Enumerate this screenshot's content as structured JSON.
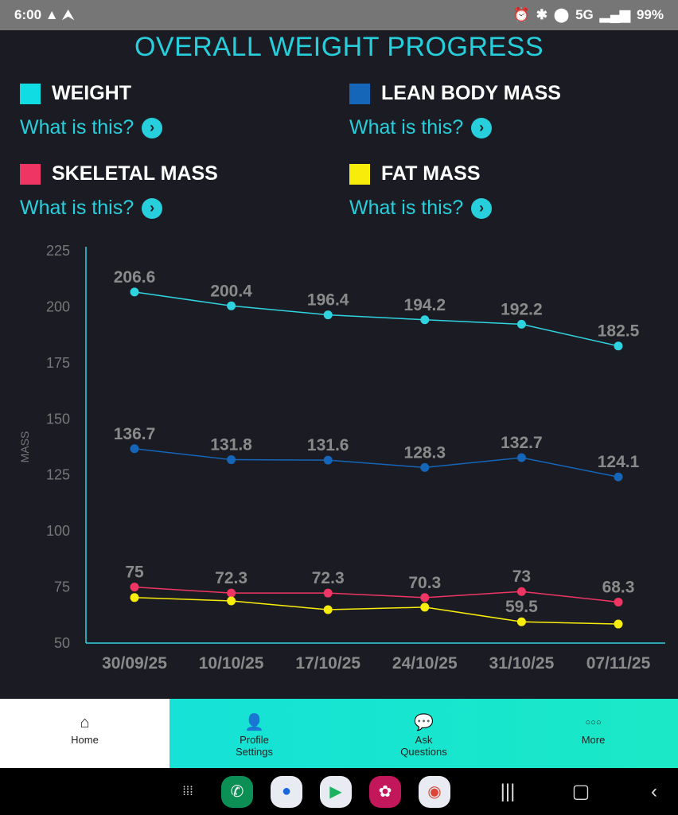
{
  "status": {
    "time": "6:00",
    "network": "5G",
    "battery": "99%"
  },
  "title": "OVERALL WEIGHT PROGRESS",
  "legend": [
    {
      "name": "WEIGHT",
      "color": "#0fdde3",
      "link": "What is this?"
    },
    {
      "name": "LEAN BODY MASS",
      "color": "#1565b8",
      "link": "What is this?"
    },
    {
      "name": "SKELETAL MASS",
      "color": "#ee3563",
      "link": "What is this?"
    },
    {
      "name": "FAT MASS",
      "color": "#f8ec0a",
      "link": "What is this?"
    }
  ],
  "chart_data": {
    "type": "line",
    "ylabel": "MASS",
    "ylim": [
      50,
      225
    ],
    "yticks": [
      50,
      75,
      100,
      125,
      150,
      175,
      200,
      225
    ],
    "categories": [
      "30/09/25",
      "10/10/25",
      "17/10/25",
      "24/10/25",
      "31/10/25",
      "07/11/25"
    ],
    "series": [
      {
        "name": "WEIGHT",
        "color": "#2fd3e0",
        "values": [
          206.6,
          200.4,
          196.4,
          194.2,
          192.2,
          182.5
        ],
        "labels": [
          "206.6",
          "200.4",
          "196.4",
          "194.2",
          "192.2",
          "182.5"
        ]
      },
      {
        "name": "LEAN BODY MASS",
        "color": "#1565b8",
        "values": [
          136.7,
          131.8,
          131.6,
          128.3,
          132.7,
          124.1
        ],
        "labels": [
          "136.7",
          "131.8",
          "131.6",
          "128.3",
          "132.7",
          "124.1"
        ]
      },
      {
        "name": "SKELETAL MASS",
        "color": "#ee3563",
        "values": [
          75,
          72.3,
          72.3,
          70.3,
          73,
          68.3
        ],
        "labels": [
          "75",
          "72.3",
          "72.3",
          "70.3",
          "73",
          "68.3"
        ]
      },
      {
        "name": "FAT MASS",
        "color": "#f8ec0a",
        "values": [
          70.3,
          68.8,
          64.9,
          66,
          59.5,
          58.5
        ],
        "labels": [
          "",
          "",
          "",
          "",
          "59.5",
          ""
        ]
      }
    ]
  },
  "nav": [
    {
      "label": "Home",
      "icon": "⌂"
    },
    {
      "label": "Profile Settings",
      "icon": "👤"
    },
    {
      "label": "Ask Questions",
      "icon": "💬"
    },
    {
      "label": "More",
      "icon": "○○○"
    }
  ]
}
